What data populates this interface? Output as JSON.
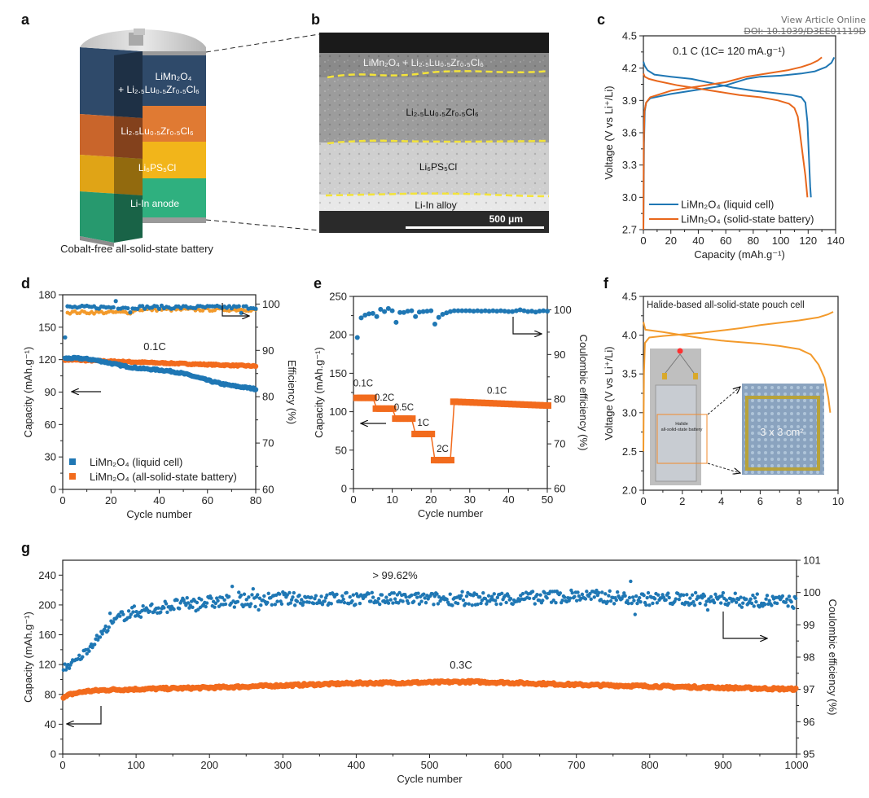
{
  "header": {
    "view_article": "View Article Online",
    "doi": "DOI: 10.1039/D3EE01119D"
  },
  "colors": {
    "liquid_blue": "#1f77b4",
    "solid_orange": "#e8671c",
    "pouch_orange": "#f39a2b",
    "layer_cathode": "#2f4a6a",
    "layer_halide": "#e07a33",
    "layer_argyrodite": "#f2b51a",
    "layer_anode": "#2fb07f"
  },
  "panel_a": {
    "letter": "a",
    "layers": [
      {
        "line1": "LiMn₂O₄",
        "line2": "+ Li₂.₅Lu₀.₅Zr₀.₅Cl₆"
      },
      {
        "line1": "Li₂.₅Lu₀.₅Zr₀.₅Cl₆"
      },
      {
        "line1": "Li₆PS₅Cl"
      },
      {
        "line1": "Li-In anode"
      }
    ],
    "caption": "Cobalt-free all-solid-state battery"
  },
  "panel_b": {
    "letter": "b",
    "labels": [
      "LiMn₂O₄ + Li₂.₅Lu₀.₅Zr₀.₅Cl₆",
      "Li₂.₅Lu₀.₅Zr₀.₅Cl₆",
      "Li₆PS₅Cl",
      "Li-In alloy"
    ],
    "scale_bar": "500 μm"
  },
  "chart_data": [
    {
      "panel": "c",
      "type": "line",
      "title": "0.1 C (1C= 120 mA.g⁻¹)",
      "xlabel": "Capacity (mAh.g⁻¹)",
      "ylabel": "Voltage (V vs Li⁺/Li)",
      "xlim": [
        0,
        140
      ],
      "ylim": [
        2.7,
        4.5
      ],
      "xticks": [
        0,
        20,
        40,
        60,
        80,
        100,
        120,
        140
      ],
      "yticks": [
        2.7,
        3.0,
        3.3,
        3.6,
        3.9,
        4.2,
        4.5
      ],
      "legend": "bottom-left",
      "series": [
        {
          "name": "LiMn₂O₄ (liquid cell)",
          "color": "#1f77b4",
          "charge": [
            [
              0,
              2.7
            ],
            [
              0.5,
              3.5
            ],
            [
              1,
              3.8
            ],
            [
              2,
              3.88
            ],
            [
              5,
              3.92
            ],
            [
              20,
              3.96
            ],
            [
              40,
              4.0
            ],
            [
              60,
              4.04
            ],
            [
              75,
              4.1
            ],
            [
              85,
              4.12
            ],
            [
              100,
              4.13
            ],
            [
              115,
              4.15
            ],
            [
              125,
              4.17
            ],
            [
              133,
              4.21
            ],
            [
              137,
              4.25
            ],
            [
              139,
              4.3
            ]
          ],
          "discharge": [
            [
              0,
              4.26
            ],
            [
              1,
              4.22
            ],
            [
              3,
              4.18
            ],
            [
              8,
              4.14
            ],
            [
              20,
              4.12
            ],
            [
              35,
              4.1
            ],
            [
              50,
              4.06
            ],
            [
              65,
              4.02
            ],
            [
              80,
              3.99
            ],
            [
              95,
              3.97
            ],
            [
              108,
              3.95
            ],
            [
              115,
              3.93
            ],
            [
              118,
              3.88
            ],
            [
              119.5,
              3.7
            ],
            [
              120.5,
              3.4
            ],
            [
              121.5,
              3.1
            ],
            [
              122,
              3.0
            ]
          ]
        },
        {
          "name": "LiMn₂O₄ (solid-state battery)",
          "color": "#e8671c",
          "charge": [
            [
              0,
              2.7
            ],
            [
              0.3,
              3.5
            ],
            [
              0.8,
              3.8
            ],
            [
              2,
              3.88
            ],
            [
              5,
              3.93
            ],
            [
              20,
              3.99
            ],
            [
              40,
              4.03
            ],
            [
              60,
              4.07
            ],
            [
              75,
              4.12
            ],
            [
              90,
              4.15
            ],
            [
              105,
              4.18
            ],
            [
              115,
              4.21
            ],
            [
              122,
              4.24
            ],
            [
              127,
              4.27
            ],
            [
              130,
              4.3
            ]
          ],
          "discharge": [
            [
              0,
              4.15
            ],
            [
              1,
              4.12
            ],
            [
              4,
              4.1
            ],
            [
              10,
              4.08
            ],
            [
              25,
              4.04
            ],
            [
              40,
              4.01
            ],
            [
              55,
              3.98
            ],
            [
              70,
              3.95
            ],
            [
              85,
              3.93
            ],
            [
              98,
              3.9
            ],
            [
              106,
              3.87
            ],
            [
              110,
              3.83
            ],
            [
              112.5,
              3.75
            ],
            [
              114,
              3.6
            ],
            [
              116,
              3.4
            ],
            [
              118,
              3.2
            ],
            [
              119.5,
              3.0
            ]
          ]
        }
      ]
    },
    {
      "panel": "d",
      "type": "scatter",
      "xlabel": "Cycle number",
      "ylabel": "Capacity (mAh.g⁻¹)",
      "y2label": "Efficiency (%)",
      "xlim": [
        0,
        80
      ],
      "ylim": [
        0,
        180
      ],
      "y2lim": [
        60,
        102
      ],
      "xticks": [
        0,
        20,
        40,
        60,
        80
      ],
      "yticks": [
        0,
        30,
        60,
        90,
        120,
        150,
        180
      ],
      "y2ticks": [
        60,
        70,
        80,
        90,
        100
      ],
      "annotation": "0.1C",
      "legend": "bottom-left",
      "series": [
        {
          "name": "LiMn₂O₄ (liquid cell)",
          "color": "#1f77b4",
          "capacity_start": 121,
          "capacity_end": 92,
          "efficiency_mean": 99.3,
          "efficiency_first": 92.8
        },
        {
          "name": "LiMn₂O₄ (all-solid-state battery)",
          "color": "#f26b1d",
          "capacity_start": 120,
          "capacity_end": 114,
          "efficiency_mean": 98.8
        }
      ]
    },
    {
      "panel": "e",
      "type": "scatter",
      "xlabel": "Cycle number",
      "ylabel": "Capacity (mAh.g⁻¹)",
      "y2label": "Coulombic efficiency (%)",
      "xlim": [
        0,
        50
      ],
      "ylim": [
        0,
        250
      ],
      "y2lim": [
        60,
        103
      ],
      "xticks": [
        0,
        10,
        20,
        30,
        40,
        50
      ],
      "yticks": [
        0,
        50,
        100,
        150,
        200,
        250
      ],
      "y2ticks": [
        60,
        70,
        80,
        90,
        100
      ],
      "rate_steps": [
        {
          "label": "0.1C",
          "start": 1,
          "end": 5,
          "capacity": 118
        },
        {
          "label": "0.2C",
          "start": 6,
          "end": 10,
          "capacity": 104
        },
        {
          "label": "0.5C",
          "start": 11,
          "end": 15,
          "capacity": 91
        },
        {
          "label": "1C",
          "start": 16,
          "end": 20,
          "capacity": 71
        },
        {
          "label": "2C",
          "start": 21,
          "end": 25,
          "capacity": 37
        },
        {
          "label": "0.1C",
          "start": 26,
          "end": 50,
          "capacity_start": 113,
          "capacity_end": 108
        }
      ],
      "efficiency": [
        93.8,
        98.2,
        98.8,
        99.1,
        99.2,
        98.5,
        100.1,
        99.6,
        100.3,
        99.8,
        97.2,
        99.4,
        99.4,
        99.7,
        99.8,
        98.5,
        99.5,
        99.6,
        99.7,
        99.8,
        96.8,
        98.3,
        99.0,
        99.3,
        99.6,
        99.8,
        99.8,
        99.8,
        99.8,
        99.8,
        99.7,
        99.8,
        99.7,
        99.8,
        99.7,
        99.8,
        99.7,
        99.8,
        99.7,
        99.6,
        99.6,
        99.8,
        100.0,
        99.8,
        99.6,
        99.7,
        99.5,
        99.7,
        99.8,
        99.7
      ],
      "capacity_color": "#f26b1d",
      "efficiency_color": "#1f77b4"
    },
    {
      "panel": "f",
      "type": "line",
      "title": "Halide-based all-solid-state pouch cell",
      "xlabel": "",
      "ylabel": "Voltage (V vs Li⁺/Li)",
      "xlim": [
        0,
        10
      ],
      "ylim": [
        2.0,
        4.5
      ],
      "xticks": [
        0,
        2,
        4,
        6,
        8,
        10
      ],
      "yticks": [
        2.0,
        2.5,
        3.0,
        3.5,
        4.0,
        4.5
      ],
      "inset_labels": {
        "pouch_text": "Halide\nall-solid-state battery",
        "area": "3 x 3 cm²"
      },
      "series": [
        {
          "name": "charge",
          "color": "#f39a2b",
          "points": [
            [
              0,
              2.5
            ],
            [
              0.03,
              3.5
            ],
            [
              0.08,
              3.9
            ],
            [
              0.3,
              3.97
            ],
            [
              1,
              3.99
            ],
            [
              2,
              4.01
            ],
            [
              3,
              4.03
            ],
            [
              4,
              4.06
            ],
            [
              5,
              4.09
            ],
            [
              6,
              4.13
            ],
            [
              7,
              4.16
            ],
            [
              8,
              4.19
            ],
            [
              9,
              4.23
            ],
            [
              9.5,
              4.27
            ],
            [
              9.75,
              4.3
            ]
          ]
        },
        {
          "name": "discharge",
          "color": "#f39a2b",
          "points": [
            [
              0,
              4.17
            ],
            [
              0.1,
              4.07
            ],
            [
              1,
              4.04
            ],
            [
              2,
              4.0
            ],
            [
              3,
              3.96
            ],
            [
              4,
              3.93
            ],
            [
              5,
              3.91
            ],
            [
              6,
              3.89
            ],
            [
              7,
              3.86
            ],
            [
              8,
              3.82
            ],
            [
              8.6,
              3.75
            ],
            [
              9.0,
              3.62
            ],
            [
              9.3,
              3.45
            ],
            [
              9.5,
              3.2
            ],
            [
              9.6,
              3.0
            ]
          ]
        }
      ]
    },
    {
      "panel": "g",
      "type": "scatter",
      "xlabel": "Cycle number",
      "ylabel": "Capacity (mAh.g⁻¹)",
      "y2label": "Coulombic efficiency (%)",
      "xlim": [
        0,
        1000
      ],
      "ylim": [
        0,
        260
      ],
      "y2lim": [
        95,
        101
      ],
      "xticks": [
        0,
        100,
        200,
        300,
        400,
        500,
        600,
        700,
        800,
        900,
        1000
      ],
      "yticks": [
        0,
        40,
        80,
        120,
        160,
        200,
        240
      ],
      "y2ticks": [
        95,
        96,
        97,
        98,
        99,
        100,
        101
      ],
      "annotations": [
        "> 99.62%",
        "0.3C"
      ],
      "capacity": {
        "color": "#f26b1d",
        "points": [
          [
            1,
            75
          ],
          [
            10,
            80
          ],
          [
            30,
            84
          ],
          [
            60,
            86
          ],
          [
            100,
            87
          ],
          [
            200,
            89
          ],
          [
            300,
            92
          ],
          [
            400,
            95
          ],
          [
            500,
            96
          ],
          [
            550,
            97
          ],
          [
            600,
            96
          ],
          [
            700,
            93
          ],
          [
            800,
            91
          ],
          [
            900,
            89
          ],
          [
            1000,
            87
          ]
        ]
      },
      "efficiency": {
        "color": "#1f77b4",
        "first": 97.6,
        "points": [
          [
            5,
            97.7
          ],
          [
            20,
            97.9
          ],
          [
            40,
            98.4
          ],
          [
            60,
            98.9
          ],
          [
            80,
            99.3
          ],
          [
            100,
            99.4
          ],
          [
            150,
            99.6
          ],
          [
            200,
            99.7
          ],
          [
            300,
            99.8
          ],
          [
            400,
            99.8
          ],
          [
            500,
            99.8
          ],
          [
            600,
            99.8
          ],
          [
            700,
            99.9
          ],
          [
            800,
            99.8
          ],
          [
            900,
            99.8
          ],
          [
            1000,
            99.7
          ]
        ],
        "scatter_spread": 0.2
      }
    }
  ]
}
